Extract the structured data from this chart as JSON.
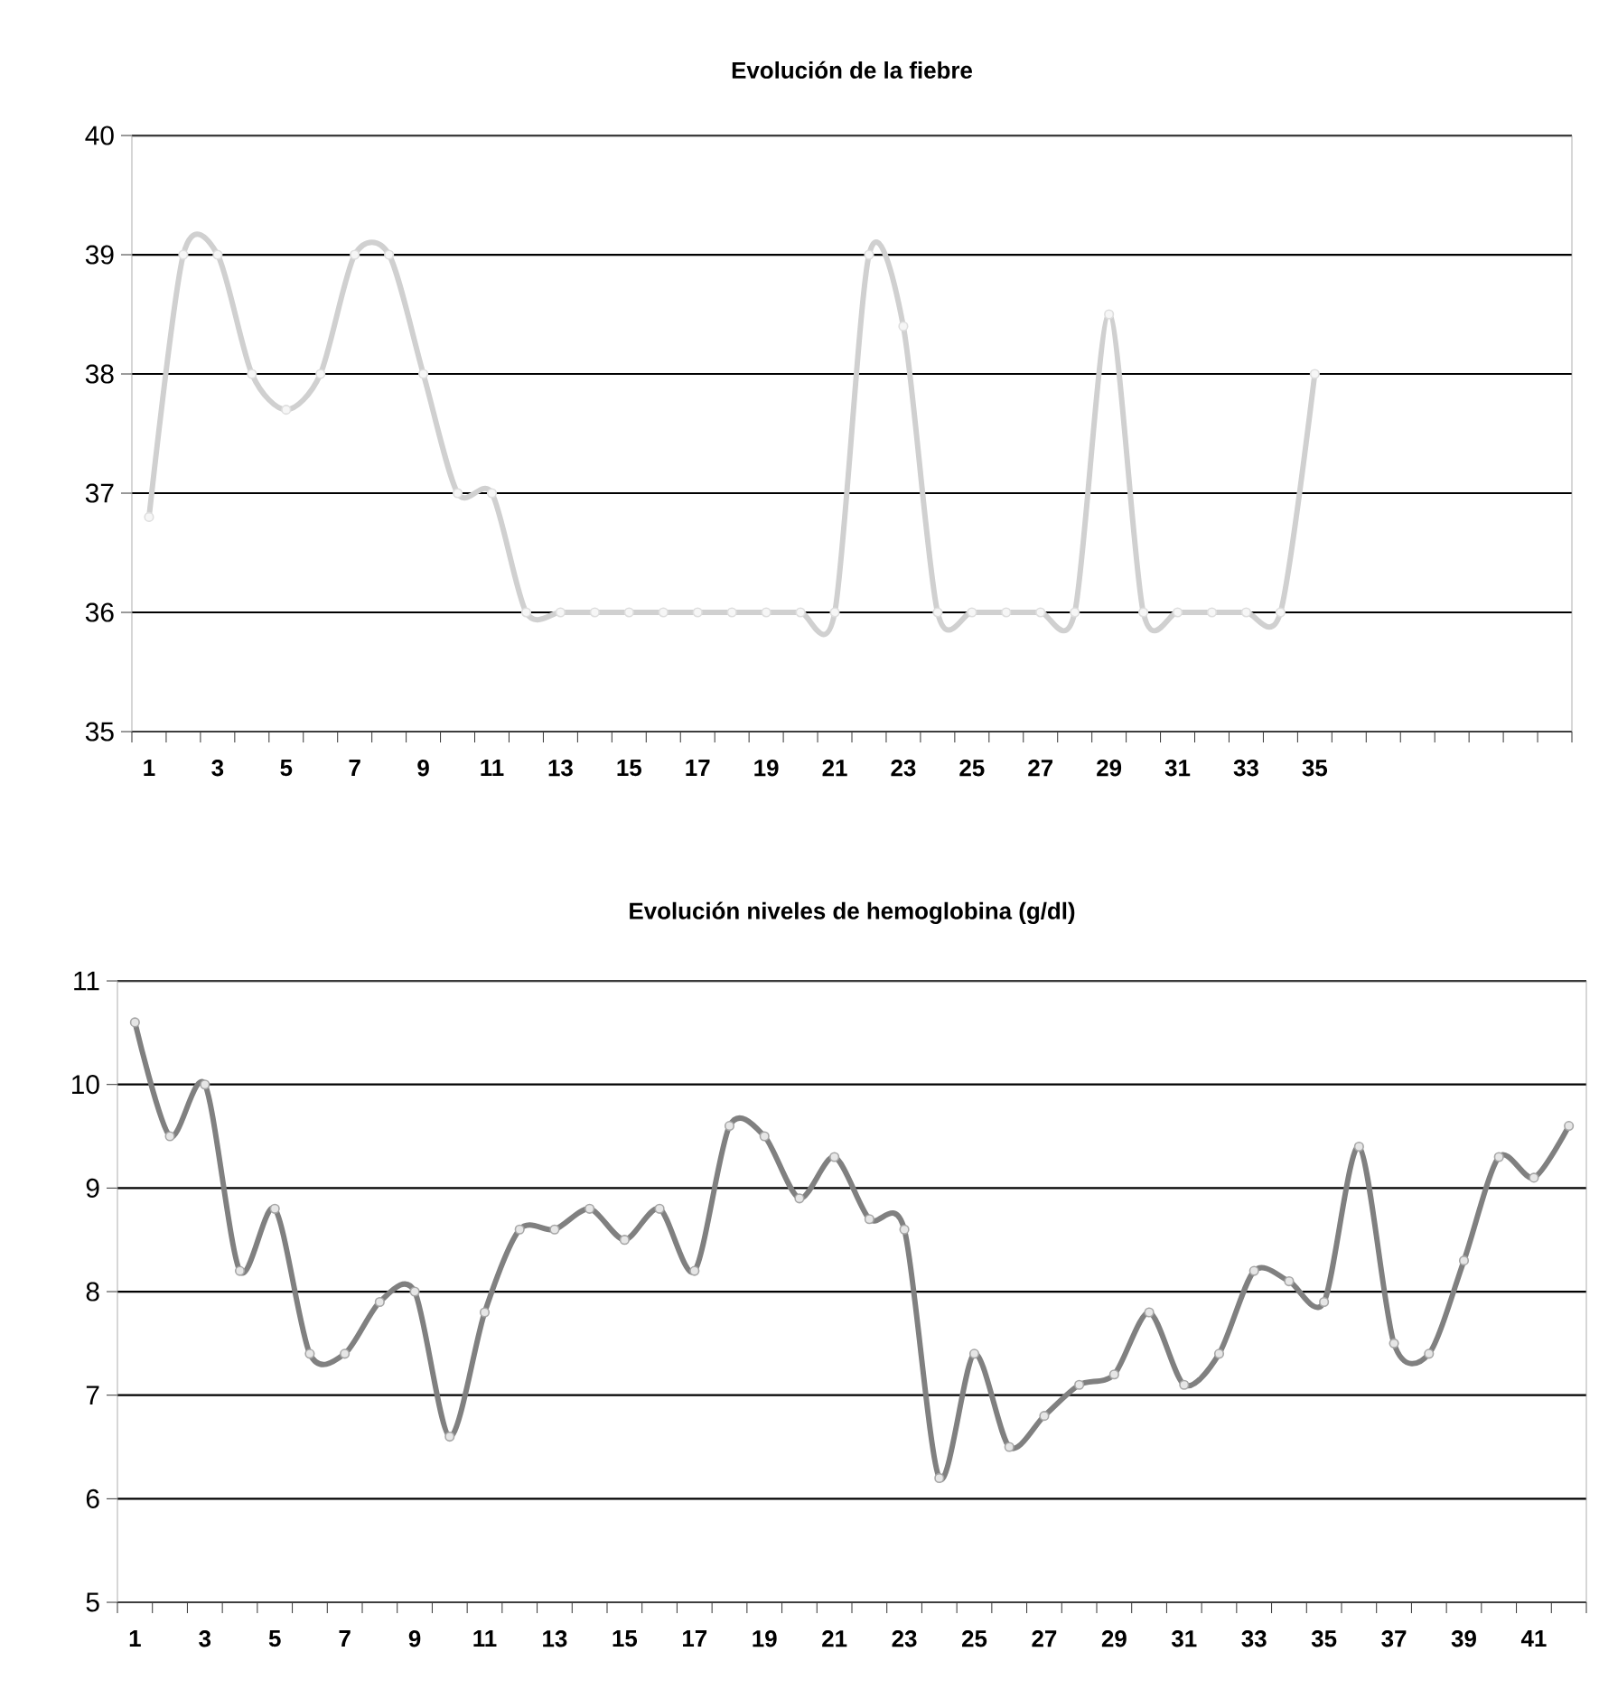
{
  "chart_data": [
    {
      "type": "line",
      "title": "Evolución de la fiebre",
      "categories": [
        "1",
        null,
        "3",
        null,
        "5",
        null,
        "7",
        null,
        "9",
        null,
        "11",
        null,
        "13",
        null,
        "15",
        null,
        "17",
        null,
        "19",
        null,
        "21",
        null,
        "23",
        null,
        "25",
        null,
        "27",
        null,
        "29",
        null,
        "31",
        null,
        "33",
        null,
        "35",
        null,
        null,
        null,
        null,
        null,
        null,
        null
      ],
      "series": [
        {
          "color": "#d0d0d0",
          "values": [
            36.8,
            39,
            39,
            38,
            37.7,
            38,
            39,
            39,
            38,
            37,
            37,
            36,
            36,
            36,
            36,
            36,
            36,
            36,
            36,
            36,
            36,
            39,
            38.4,
            36,
            36,
            36,
            36,
            36,
            38.5,
            36,
            36,
            36,
            36,
            36,
            38,
            null,
            null,
            null,
            null,
            null,
            null,
            null
          ]
        }
      ],
      "ylim": [
        35,
        40
      ],
      "yticks": [
        35,
        36,
        37,
        38,
        39,
        40
      ],
      "grid": "y",
      "marker": "circle"
    },
    {
      "type": "line",
      "title": "Evolución niveles de hemoglobina (g/dl)",
      "categories": [
        "1",
        null,
        "3",
        null,
        "5",
        null,
        "7",
        null,
        "9",
        null,
        "11",
        null,
        "13",
        null,
        "15",
        null,
        "17",
        null,
        "19",
        null,
        "21",
        null,
        "23",
        null,
        "25",
        null,
        "27",
        null,
        "29",
        null,
        "31",
        null,
        "33",
        null,
        "35",
        null,
        "37",
        null,
        "39",
        null,
        "41",
        null
      ],
      "series": [
        {
          "color": "#808080",
          "values": [
            10.6,
            9.5,
            10.0,
            8.2,
            8.8,
            7.4,
            7.4,
            7.9,
            8.0,
            6.6,
            7.8,
            8.6,
            8.6,
            8.8,
            8.5,
            8.8,
            8.2,
            9.6,
            9.5,
            8.9,
            9.3,
            8.7,
            8.6,
            6.2,
            7.4,
            6.5,
            6.8,
            7.1,
            7.2,
            7.8,
            7.1,
            7.4,
            8.2,
            8.1,
            7.9,
            9.4,
            7.5,
            7.4,
            8.3,
            9.3,
            9.1,
            9.6
          ]
        }
      ],
      "ylim": [
        5,
        11
      ],
      "yticks": [
        5,
        6,
        7,
        8,
        9,
        10,
        11
      ],
      "grid": "y",
      "marker": "circle"
    }
  ]
}
